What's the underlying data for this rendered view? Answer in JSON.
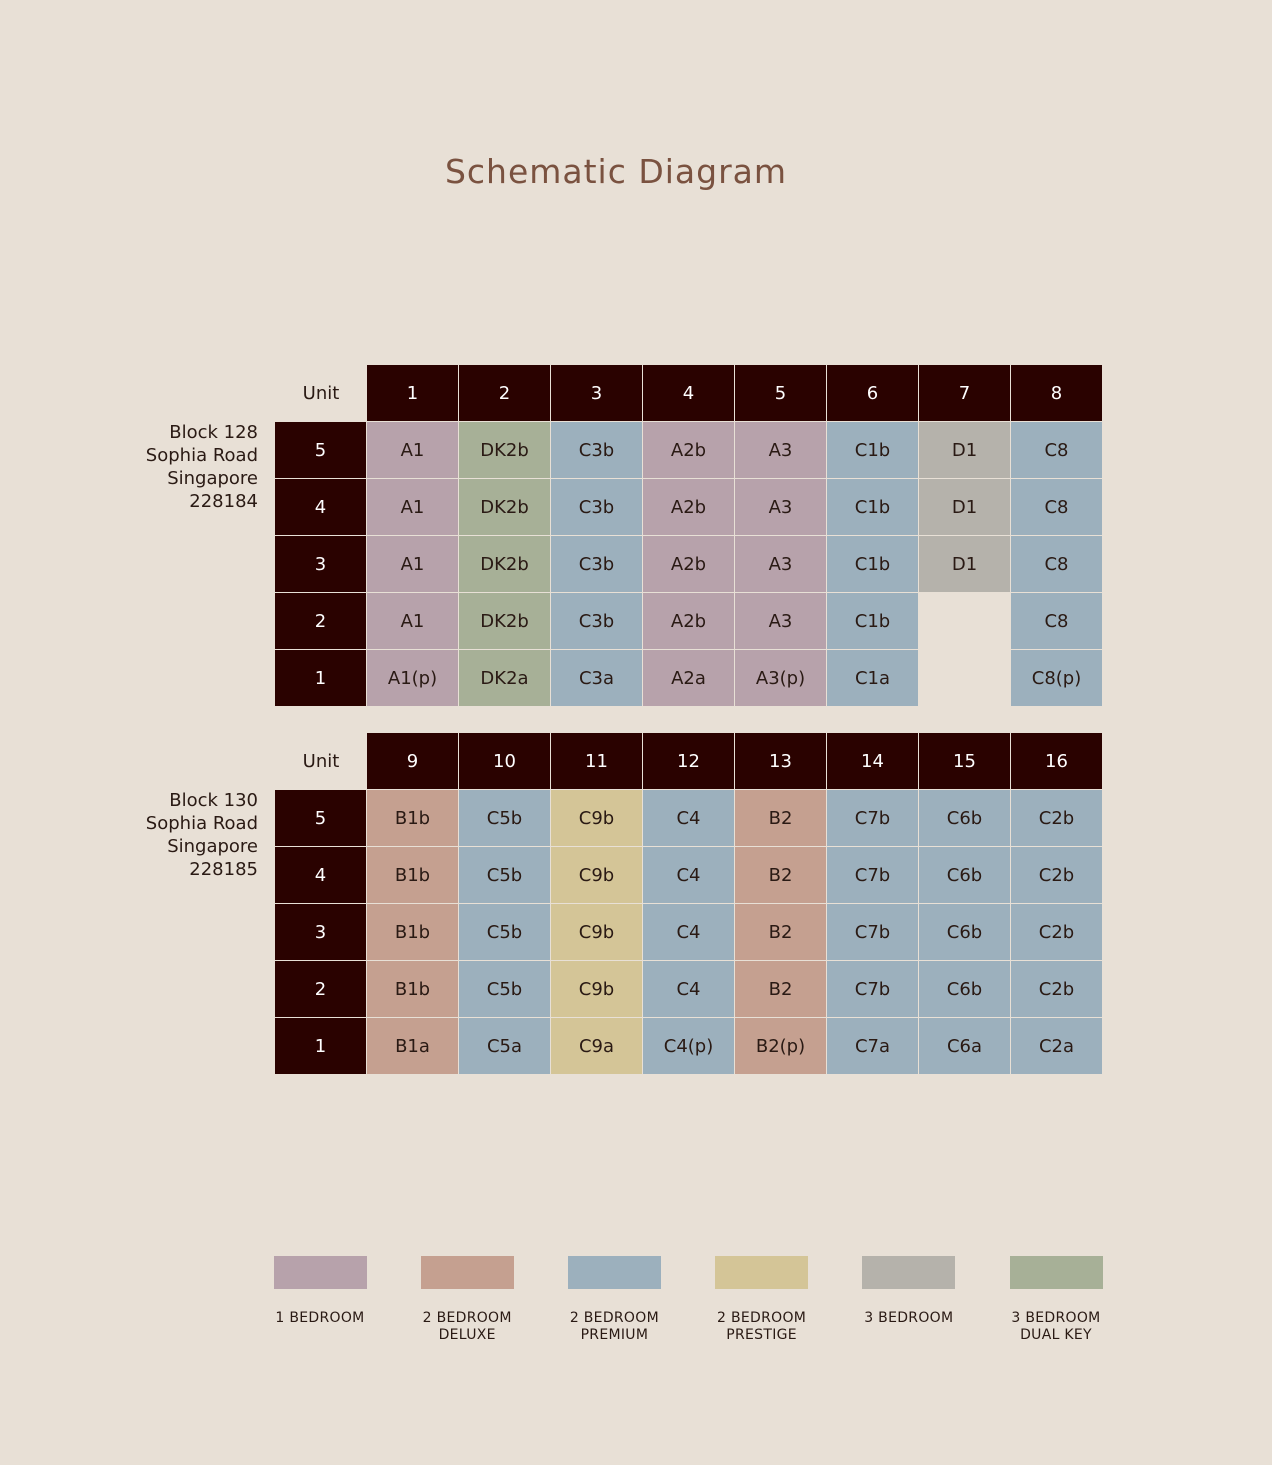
{
  "title": "Schematic Diagram",
  "colors": {
    "header_bg": "#2a0200",
    "page_bg": "#e8e0d6",
    "type_1_bedroom": "#b7a2ab",
    "type_2_bedroom_deluxe": "#c5a090",
    "type_2_bedroom_premium": "#9cb0bd",
    "type_2_bedroom_prestige": "#d4c597",
    "type_3_bedroom": "#b5b2ab",
    "type_3_bedroom_dual_key": "#a7b097"
  },
  "blocks": [
    {
      "label_lines": [
        "Block 128",
        "Sophia Road",
        "Singapore",
        "228184"
      ],
      "unit_label": "Unit",
      "units": [
        "1",
        "2",
        "3",
        "4",
        "5",
        "6",
        "7",
        "8"
      ],
      "levels": [
        {
          "level": "5",
          "cells": [
            {
              "text": "A1",
              "type": "type_1_bedroom"
            },
            {
              "text": "DK2b",
              "type": "type_3_bedroom_dual_key"
            },
            {
              "text": "C3b",
              "type": "type_2_bedroom_premium"
            },
            {
              "text": "A2b",
              "type": "type_1_bedroom"
            },
            {
              "text": "A3",
              "type": "type_1_bedroom"
            },
            {
              "text": "C1b",
              "type": "type_2_bedroom_premium"
            },
            {
              "text": "D1",
              "type": "type_3_bedroom"
            },
            {
              "text": "C8",
              "type": "type_2_bedroom_premium"
            }
          ]
        },
        {
          "level": "4",
          "cells": [
            {
              "text": "A1",
              "type": "type_1_bedroom"
            },
            {
              "text": "DK2b",
              "type": "type_3_bedroom_dual_key"
            },
            {
              "text": "C3b",
              "type": "type_2_bedroom_premium"
            },
            {
              "text": "A2b",
              "type": "type_1_bedroom"
            },
            {
              "text": "A3",
              "type": "type_1_bedroom"
            },
            {
              "text": "C1b",
              "type": "type_2_bedroom_premium"
            },
            {
              "text": "D1",
              "type": "type_3_bedroom"
            },
            {
              "text": "C8",
              "type": "type_2_bedroom_premium"
            }
          ]
        },
        {
          "level": "3",
          "cells": [
            {
              "text": "A1",
              "type": "type_1_bedroom"
            },
            {
              "text": "DK2b",
              "type": "type_3_bedroom_dual_key"
            },
            {
              "text": "C3b",
              "type": "type_2_bedroom_premium"
            },
            {
              "text": "A2b",
              "type": "type_1_bedroom"
            },
            {
              "text": "A3",
              "type": "type_1_bedroom"
            },
            {
              "text": "C1b",
              "type": "type_2_bedroom_premium"
            },
            {
              "text": "D1",
              "type": "type_3_bedroom"
            },
            {
              "text": "C8",
              "type": "type_2_bedroom_premium"
            }
          ]
        },
        {
          "level": "2",
          "cells": [
            {
              "text": "A1",
              "type": "type_1_bedroom"
            },
            {
              "text": "DK2b",
              "type": "type_3_bedroom_dual_key"
            },
            {
              "text": "C3b",
              "type": "type_2_bedroom_premium"
            },
            {
              "text": "A2b",
              "type": "type_1_bedroom"
            },
            {
              "text": "A3",
              "type": "type_1_bedroom"
            },
            {
              "text": "C1b",
              "type": "type_2_bedroom_premium"
            },
            {
              "text": "",
              "type": "empty"
            },
            {
              "text": "C8",
              "type": "type_2_bedroom_premium"
            }
          ]
        },
        {
          "level": "1",
          "cells": [
            {
              "text": "A1(p)",
              "type": "type_1_bedroom"
            },
            {
              "text": "DK2a",
              "type": "type_3_bedroom_dual_key"
            },
            {
              "text": "C3a",
              "type": "type_2_bedroom_premium"
            },
            {
              "text": "A2a",
              "type": "type_1_bedroom"
            },
            {
              "text": "A3(p)",
              "type": "type_1_bedroom"
            },
            {
              "text": "C1a",
              "type": "type_2_bedroom_premium"
            },
            {
              "text": "",
              "type": "empty"
            },
            {
              "text": "C8(p)",
              "type": "type_2_bedroom_premium"
            }
          ]
        }
      ]
    },
    {
      "label_lines": [
        "Block 130",
        "Sophia Road",
        "Singapore",
        "228185"
      ],
      "unit_label": "Unit",
      "units": [
        "9",
        "10",
        "11",
        "12",
        "13",
        "14",
        "15",
        "16"
      ],
      "levels": [
        {
          "level": "5",
          "cells": [
            {
              "text": "B1b",
              "type": "type_2_bedroom_deluxe"
            },
            {
              "text": "C5b",
              "type": "type_2_bedroom_premium"
            },
            {
              "text": "C9b",
              "type": "type_2_bedroom_prestige"
            },
            {
              "text": "C4",
              "type": "type_2_bedroom_premium"
            },
            {
              "text": "B2",
              "type": "type_2_bedroom_deluxe"
            },
            {
              "text": "C7b",
              "type": "type_2_bedroom_premium"
            },
            {
              "text": "C6b",
              "type": "type_2_bedroom_premium"
            },
            {
              "text": "C2b",
              "type": "type_2_bedroom_premium"
            }
          ]
        },
        {
          "level": "4",
          "cells": [
            {
              "text": "B1b",
              "type": "type_2_bedroom_deluxe"
            },
            {
              "text": "C5b",
              "type": "type_2_bedroom_premium"
            },
            {
              "text": "C9b",
              "type": "type_2_bedroom_prestige"
            },
            {
              "text": "C4",
              "type": "type_2_bedroom_premium"
            },
            {
              "text": "B2",
              "type": "type_2_bedroom_deluxe"
            },
            {
              "text": "C7b",
              "type": "type_2_bedroom_premium"
            },
            {
              "text": "C6b",
              "type": "type_2_bedroom_premium"
            },
            {
              "text": "C2b",
              "type": "type_2_bedroom_premium"
            }
          ]
        },
        {
          "level": "3",
          "cells": [
            {
              "text": "B1b",
              "type": "type_2_bedroom_deluxe"
            },
            {
              "text": "C5b",
              "type": "type_2_bedroom_premium"
            },
            {
              "text": "C9b",
              "type": "type_2_bedroom_prestige"
            },
            {
              "text": "C4",
              "type": "type_2_bedroom_premium"
            },
            {
              "text": "B2",
              "type": "type_2_bedroom_deluxe"
            },
            {
              "text": "C7b",
              "type": "type_2_bedroom_premium"
            },
            {
              "text": "C6b",
              "type": "type_2_bedroom_premium"
            },
            {
              "text": "C2b",
              "type": "type_2_bedroom_premium"
            }
          ]
        },
        {
          "level": "2",
          "cells": [
            {
              "text": "B1b",
              "type": "type_2_bedroom_deluxe"
            },
            {
              "text": "C5b",
              "type": "type_2_bedroom_premium"
            },
            {
              "text": "C9b",
              "type": "type_2_bedroom_prestige"
            },
            {
              "text": "C4",
              "type": "type_2_bedroom_premium"
            },
            {
              "text": "B2",
              "type": "type_2_bedroom_deluxe"
            },
            {
              "text": "C7b",
              "type": "type_2_bedroom_premium"
            },
            {
              "text": "C6b",
              "type": "type_2_bedroom_premium"
            },
            {
              "text": "C2b",
              "type": "type_2_bedroom_premium"
            }
          ]
        },
        {
          "level": "1",
          "cells": [
            {
              "text": "B1a",
              "type": "type_2_bedroom_deluxe"
            },
            {
              "text": "C5a",
              "type": "type_2_bedroom_premium"
            },
            {
              "text": "C9a",
              "type": "type_2_bedroom_prestige"
            },
            {
              "text": "C4(p)",
              "type": "type_2_bedroom_premium"
            },
            {
              "text": "B2(p)",
              "type": "type_2_bedroom_deluxe"
            },
            {
              "text": "C7a",
              "type": "type_2_bedroom_premium"
            },
            {
              "text": "C6a",
              "type": "type_2_bedroom_premium"
            },
            {
              "text": "C2a",
              "type": "type_2_bedroom_premium"
            }
          ]
        }
      ]
    }
  ],
  "legend": [
    {
      "lines": [
        "1 BEDROOM"
      ],
      "type": "type_1_bedroom"
    },
    {
      "lines": [
        "2 BEDROOM",
        "DELUXE"
      ],
      "type": "type_2_bedroom_deluxe"
    },
    {
      "lines": [
        "2 BEDROOM",
        "PREMIUM"
      ],
      "type": "type_2_bedroom_premium"
    },
    {
      "lines": [
        "2 BEDROOM",
        "PRESTIGE"
      ],
      "type": "type_2_bedroom_prestige"
    },
    {
      "lines": [
        "3 BEDROOM"
      ],
      "type": "type_3_bedroom"
    },
    {
      "lines": [
        "3 BEDROOM",
        "DUAL KEY"
      ],
      "type": "type_3_bedroom_dual_key"
    }
  ]
}
